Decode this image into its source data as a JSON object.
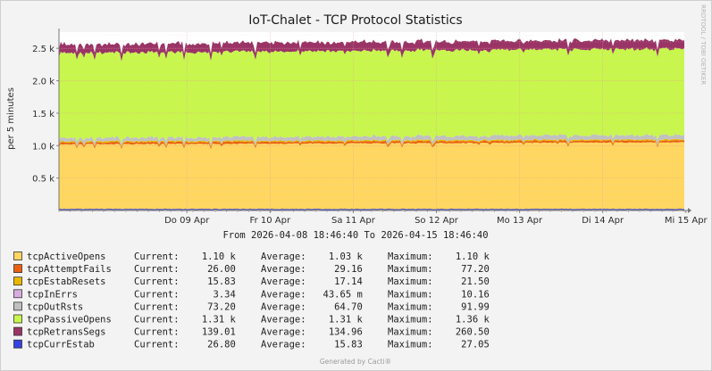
{
  "chart_data": {
    "type": "area",
    "title": "IoT-Chalet - TCP Protocol Statistics",
    "ylabel": "per 5 minutes",
    "ylim": [
      0,
      2750
    ],
    "y_ticks": [
      {
        "value": 500,
        "label": "0.5 k"
      },
      {
        "value": 1000,
        "label": "1.0 k"
      },
      {
        "value": 1500,
        "label": "1.5 k"
      },
      {
        "value": 2000,
        "label": "2.0 k"
      },
      {
        "value": 2500,
        "label": "2.5 k"
      }
    ],
    "x_range": [
      "2026-04-08 18:46:40",
      "2026-04-15 18:46:40"
    ],
    "x_ticks": [
      {
        "pos": 0.22,
        "label": "Do 09 Apr"
      },
      {
        "pos": 0.363,
        "label": "Fr 10 Apr"
      },
      {
        "pos": 0.506,
        "label": "Sa 11 Apr"
      },
      {
        "pos": 0.649,
        "label": "So 12 Apr"
      },
      {
        "pos": 0.792,
        "label": "Mo 13 Apr"
      },
      {
        "pos": 0.935,
        "label": "Di 14 Apr"
      },
      {
        "pos": 1.078,
        "label": "Mi 15 Apr"
      }
    ],
    "time_range_text": "From 2026-04-08 18:46:40 To 2026-04-15 18:46:40",
    "grid": true,
    "watermark": "RRDTOOL / TOBI OETIKER",
    "footer": "Generated by Cacti®",
    "series": [
      {
        "name": "tcpActiveOpens",
        "color": "#FFD660",
        "current": "1.10 k",
        "average": "1.03 k",
        "maximum": "1.10 k",
        "level": 1030
      },
      {
        "name": "tcpAttemptFails",
        "color": "#EA6010",
        "current": "26.00",
        "average": "29.16",
        "maximum": "77.20",
        "level": 29
      },
      {
        "name": "tcpEstabResets",
        "color": "#E8B800",
        "current": "15.83",
        "average": "17.14",
        "maximum": "21.50",
        "level": 17
      },
      {
        "name": "tcpInErrs",
        "color": "#D8ACE0",
        "current": "3.34",
        "average": "43.65 m",
        "maximum": "10.16",
        "level": 0.04
      },
      {
        "name": "tcpOutRsts",
        "color": "#C0C0C0",
        "current": "73.20",
        "average": "64.70",
        "maximum": "91.99",
        "level": 65
      },
      {
        "name": "tcpPassiveOpens",
        "color": "#C8F64C",
        "current": "1.31 k",
        "average": "1.31 k",
        "maximum": "1.36 k",
        "level": 1310
      },
      {
        "name": "tcpRetransSegs",
        "color": "#9A3466",
        "current": "139.01",
        "average": "134.96",
        "maximum": "260.50",
        "level": 135
      },
      {
        "name": "tcpCurrEstab",
        "color": "#3344E0",
        "current": "26.80",
        "average": "15.83",
        "maximum": "27.05",
        "level": 16
      }
    ]
  }
}
